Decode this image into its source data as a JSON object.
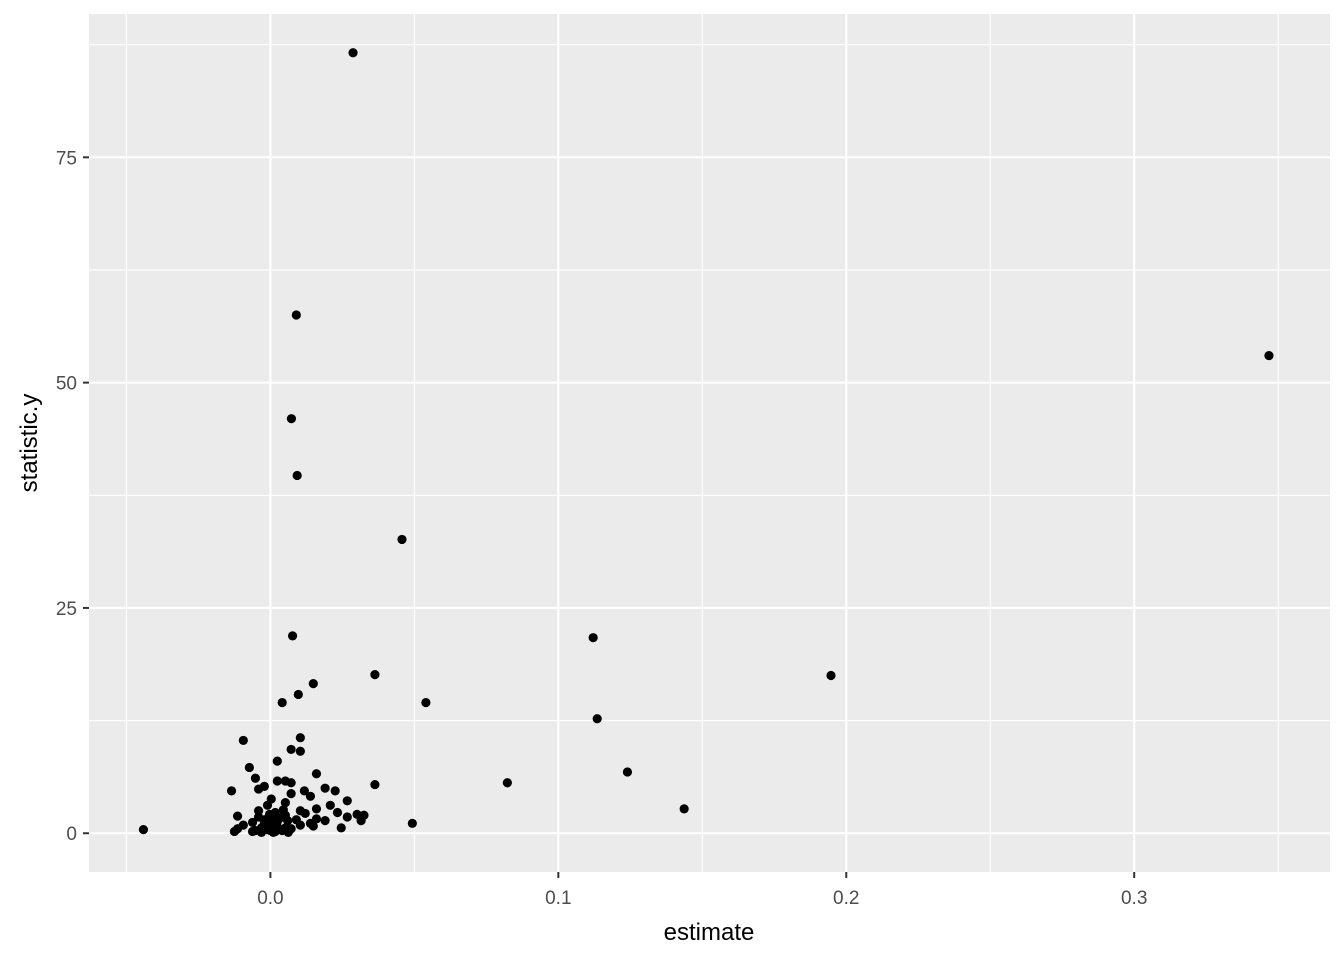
{
  "chart_data": {
    "type": "scatter",
    "title": "",
    "xlabel": "estimate",
    "ylabel": "statistic.y",
    "xlim": [
      -0.063,
      0.368
    ],
    "ylim": [
      -4.3,
      90.9
    ],
    "x_ticks": [
      0.0,
      0.1,
      0.2,
      0.3
    ],
    "x_tick_labels": [
      "0.0",
      "0.1",
      "0.2",
      "0.3"
    ],
    "y_ticks": [
      0,
      25,
      50,
      75
    ],
    "y_tick_labels": [
      "0",
      "25",
      "50",
      "75"
    ],
    "grid": true,
    "legend": "none",
    "colors": {
      "panel": "#EBEBEB",
      "grid": "#FFFFFF",
      "point": "#000000",
      "tick": "#333333"
    },
    "points": [
      {
        "x": 0.0287,
        "y": 86.6
      },
      {
        "x": 0.009,
        "y": 57.5
      },
      {
        "x": 0.3468,
        "y": 53.0
      },
      {
        "x": 0.0073,
        "y": 46.0
      },
      {
        "x": 0.0093,
        "y": 39.7
      },
      {
        "x": 0.0457,
        "y": 32.6
      },
      {
        "x": 0.0077,
        "y": 21.9
      },
      {
        "x": 0.1121,
        "y": 21.7
      },
      {
        "x": 0.1947,
        "y": 17.5
      },
      {
        "x": 0.0363,
        "y": 17.6
      },
      {
        "x": 0.0149,
        "y": 16.6
      },
      {
        "x": 0.0097,
        "y": 15.4
      },
      {
        "x": 0.0041,
        "y": 14.5
      },
      {
        "x": 0.054,
        "y": 14.5
      },
      {
        "x": 0.1135,
        "y": 12.7
      },
      {
        "x": 0.0104,
        "y": 10.6
      },
      {
        "x": -0.0094,
        "y": 10.3
      },
      {
        "x": 0.0072,
        "y": 9.3
      },
      {
        "x": 0.0104,
        "y": 9.1
      },
      {
        "x": 0.0024,
        "y": 8.0
      },
      {
        "x": -0.0073,
        "y": 7.3
      },
      {
        "x": 0.124,
        "y": 6.8
      },
      {
        "x": 0.016,
        "y": 6.6
      },
      {
        "x": -0.0052,
        "y": 6.1
      },
      {
        "x": 0.0024,
        "y": 5.8
      },
      {
        "x": 0.0052,
        "y": 5.8
      },
      {
        "x": 0.0072,
        "y": 5.6
      },
      {
        "x": 0.0823,
        "y": 5.6
      },
      {
        "x": 0.0363,
        "y": 5.4
      },
      {
        "x": -0.0021,
        "y": 5.2
      },
      {
        "x": -0.0041,
        "y": 4.9
      },
      {
        "x": 0.019,
        "y": 5.0
      },
      {
        "x": -0.0135,
        "y": 4.7
      },
      {
        "x": 0.0118,
        "y": 4.7
      },
      {
        "x": 0.0225,
        "y": 4.7
      },
      {
        "x": 0.0072,
        "y": 4.4
      },
      {
        "x": 0.0139,
        "y": 4.1
      },
      {
        "x": 0.0003,
        "y": 3.8
      },
      {
        "x": 0.0267,
        "y": 3.6
      },
      {
        "x": 0.0052,
        "y": 3.4
      },
      {
        "x": -0.001,
        "y": 3.1
      },
      {
        "x": 0.0208,
        "y": 3.1
      },
      {
        "x": 0.016,
        "y": 2.7
      },
      {
        "x": 0.1437,
        "y": 2.7
      },
      {
        "x": -0.0041,
        "y": 2.5
      },
      {
        "x": 0.0104,
        "y": 2.5
      },
      {
        "x": 0.0233,
        "y": 2.3
      },
      {
        "x": 0.0121,
        "y": 2.2
      },
      {
        "x": 0.0301,
        "y": 2.1
      },
      {
        "x": 0.0325,
        "y": 2.0
      },
      {
        "x": -0.0114,
        "y": 1.9
      },
      {
        "x": 0.0003,
        "y": 1.9
      },
      {
        "x": 0.0052,
        "y": 2.0
      },
      {
        "x": 0.0267,
        "y": 1.8
      },
      {
        "x": 0.016,
        "y": 1.6
      },
      {
        "x": 0.009,
        "y": 1.5
      },
      {
        "x": 0.019,
        "y": 1.4
      },
      {
        "x": 0.0315,
        "y": 1.4
      },
      {
        "x": -0.0062,
        "y": 1.2
      },
      {
        "x": 0.0024,
        "y": 1.3
      },
      {
        "x": -0.0021,
        "y": 1.1
      },
      {
        "x": 0.0139,
        "y": 1.1
      },
      {
        "x": 0.0493,
        "y": 1.1
      },
      {
        "x": -0.0094,
        "y": 0.9
      },
      {
        "x": 0.0003,
        "y": 0.9
      },
      {
        "x": 0.0104,
        "y": 0.9
      },
      {
        "x": 0.0013,
        "y": 0.8
      },
      {
        "x": 0.0149,
        "y": 0.8
      },
      {
        "x": -0.0031,
        "y": 0.6
      },
      {
        "x": 0.0052,
        "y": 0.6
      },
      {
        "x": 0.0246,
        "y": 0.6
      },
      {
        "x": -0.0114,
        "y": 0.5
      },
      {
        "x": 0.0031,
        "y": 0.5
      },
      {
        "x": 0.0072,
        "y": 0.5
      },
      {
        "x": -0.001,
        "y": 0.4
      },
      {
        "x": -0.0441,
        "y": 0.4
      },
      {
        "x": 0.0,
        "y": 0.3
      },
      {
        "x": -0.0052,
        "y": 0.3
      },
      {
        "x": 0.0041,
        "y": 0.3
      },
      {
        "x": -0.0125,
        "y": 0.2
      },
      {
        "x": -0.0062,
        "y": 0.2
      },
      {
        "x": 0.0017,
        "y": 0.2
      },
      {
        "x": -0.0031,
        "y": 0.1
      },
      {
        "x": 0.001,
        "y": 0.1
      },
      {
        "x": 0.0062,
        "y": 0.1
      },
      {
        "x": -0.002,
        "y": 1.5
      },
      {
        "x": 0.0007,
        "y": 1.6
      },
      {
        "x": 0.0034,
        "y": 1.7
      },
      {
        "x": 0.006,
        "y": 1.4
      },
      {
        "x": -0.0041,
        "y": 1.8
      },
      {
        "x": 0.0017,
        "y": 2.3
      },
      {
        "x": -0.0003,
        "y": 2.1
      },
      {
        "x": 0.0045,
        "y": 2.6
      }
    ]
  }
}
